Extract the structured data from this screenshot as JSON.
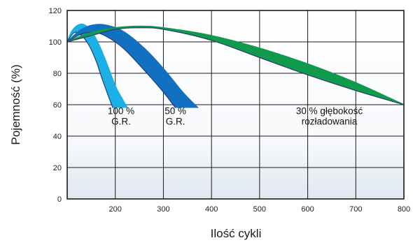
{
  "chart_data": {
    "type": "area",
    "xlabel": "Ilość cykli",
    "ylabel": "Pojemność (%)",
    "xlim": [
      100,
      800
    ],
    "ylim": [
      0,
      120
    ],
    "x_ticks": [
      200,
      300,
      400,
      500,
      600,
      700,
      800
    ],
    "y_ticks": [
      0,
      20,
      40,
      60,
      80,
      100,
      120
    ],
    "grid": true,
    "series": [
      {
        "color": "#1ab0e6",
        "upper": [
          [
            100,
            100
          ],
          [
            110,
            107
          ],
          [
            125,
            111
          ],
          [
            140,
            110
          ],
          [
            160,
            102
          ],
          [
            180,
            88
          ],
          [
            200,
            72
          ],
          [
            212,
            65
          ],
          [
            225,
            58
          ]
        ],
        "lower": [
          [
            100,
            100
          ],
          [
            115,
            106
          ],
          [
            130,
            104
          ],
          [
            145,
            98
          ],
          [
            160,
            88
          ],
          [
            172,
            77
          ],
          [
            185,
            66
          ],
          [
            195,
            58
          ]
        ]
      },
      {
        "color": "#1270c0",
        "upper": [
          [
            100,
            100
          ],
          [
            130,
            108
          ],
          [
            160,
            111
          ],
          [
            190,
            110
          ],
          [
            220,
            106
          ],
          [
            260,
            96
          ],
          [
            300,
            83
          ],
          [
            340,
            68
          ],
          [
            372,
            58
          ]
        ],
        "lower": [
          [
            100,
            100
          ],
          [
            130,
            105
          ],
          [
            160,
            106
          ],
          [
            190,
            102
          ],
          [
            220,
            95
          ],
          [
            260,
            82
          ],
          [
            300,
            68
          ],
          [
            325,
            58
          ]
        ]
      },
      {
        "color": "#0f9a4e",
        "upper": [
          [
            100,
            100
          ],
          [
            150,
            106
          ],
          [
            200,
            109
          ],
          [
            250,
            110
          ],
          [
            300,
            109
          ],
          [
            400,
            104
          ],
          [
            500,
            96
          ],
          [
            600,
            86
          ],
          [
            700,
            74
          ],
          [
            800,
            60
          ]
        ],
        "lower": [
          [
            100,
            100
          ],
          [
            150,
            104
          ],
          [
            200,
            108
          ],
          [
            250,
            109
          ],
          [
            300,
            108
          ],
          [
            400,
            101
          ],
          [
            500,
            90
          ],
          [
            600,
            79
          ],
          [
            700,
            69
          ],
          [
            800,
            60
          ]
        ]
      }
    ],
    "annotations": [
      {
        "lines": [
          "100 %",
          "G.R."
        ],
        "x": 212,
        "y": 54
      },
      {
        "lines": [
          "50 %",
          "G.R."
        ],
        "x": 325,
        "y": 54
      },
      {
        "lines": [
          "30 % głębokość",
          "rozładowania"
        ],
        "x": 645,
        "y": 54
      }
    ]
  }
}
